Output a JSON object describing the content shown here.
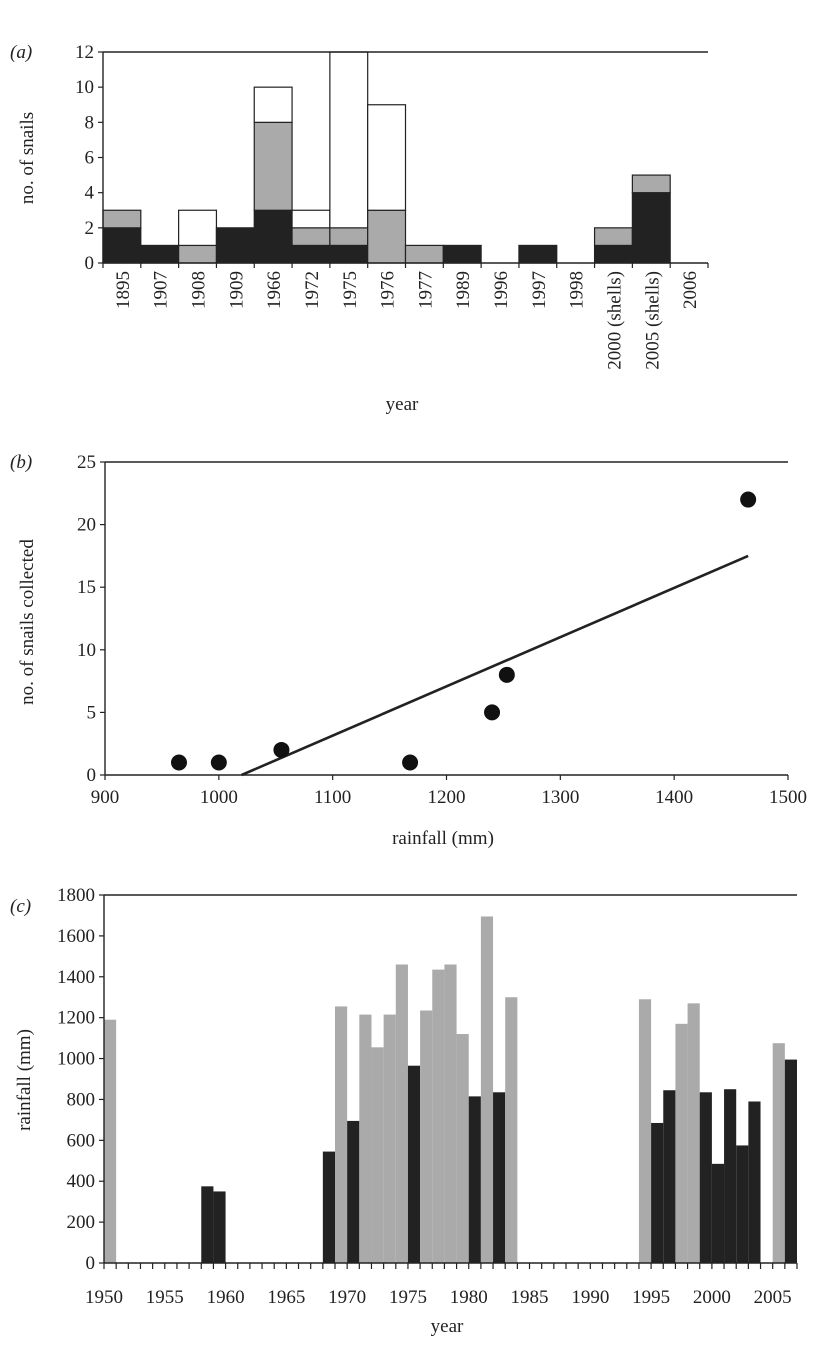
{
  "colors": {
    "black": "#222222",
    "grey": "#aaaaaa",
    "white": "#ffffff"
  },
  "chart_data": [
    {
      "panel": "(a)",
      "type": "bar",
      "stacked": true,
      "categories": [
        "1895",
        "1907",
        "1908",
        "1909",
        "1966",
        "1972",
        "1975",
        "1976",
        "1977",
        "1989",
        "1996",
        "1997",
        "1998",
        "2000 (shells)",
        "2005 (shells)",
        "2006"
      ],
      "series": [
        {
          "color": "black",
          "values": [
            2,
            1,
            0,
            2,
            3,
            1,
            1,
            0,
            0,
            1,
            0,
            1,
            0,
            1,
            4,
            0
          ]
        },
        {
          "color": "grey",
          "values": [
            1,
            0,
            1,
            0,
            5,
            1,
            1,
            3,
            1,
            0,
            0,
            0,
            0,
            1,
            1,
            0
          ]
        },
        {
          "color": "white",
          "values": [
            0,
            0,
            2,
            0,
            2,
            1,
            10,
            6,
            0,
            0,
            0,
            0,
            0,
            0,
            0,
            0
          ]
        }
      ],
      "xlabel": "year",
      "ylabel": "no. of snails",
      "ylim": [
        0,
        12
      ],
      "yticks": [
        0,
        2,
        4,
        6,
        8,
        10,
        12
      ]
    },
    {
      "panel": "(b)",
      "type": "scatter",
      "points": [
        {
          "x": 965,
          "y": 1
        },
        {
          "x": 1000,
          "y": 1
        },
        {
          "x": 1055,
          "y": 2
        },
        {
          "x": 1168,
          "y": 1
        },
        {
          "x": 1240,
          "y": 5
        },
        {
          "x": 1253,
          "y": 8
        },
        {
          "x": 1465,
          "y": 22
        }
      ],
      "fit_line": {
        "x": [
          1020,
          1465
        ],
        "y": [
          0,
          17.5
        ]
      },
      "xlabel": "rainfall (mm)",
      "ylabel": "no. of snails collected",
      "xlim": [
        900,
        1500
      ],
      "ylim": [
        0,
        25
      ],
      "xticks": [
        900,
        1000,
        1100,
        1200,
        1300,
        1400,
        1500
      ],
      "yticks": [
        0,
        5,
        10,
        15,
        20,
        25
      ]
    },
    {
      "panel": "(c)",
      "type": "bar",
      "bars": [
        {
          "year": 1950,
          "value": 1190,
          "color": "grey"
        },
        {
          "year": 1958,
          "value": 375,
          "color": "black"
        },
        {
          "year": 1959,
          "value": 350,
          "color": "black"
        },
        {
          "year": 1968,
          "value": 545,
          "color": "black"
        },
        {
          "year": 1969,
          "value": 1255,
          "color": "grey"
        },
        {
          "year": 1970,
          "value": 695,
          "color": "black"
        },
        {
          "year": 1971,
          "value": 1215,
          "color": "grey"
        },
        {
          "year": 1972,
          "value": 1055,
          "color": "grey"
        },
        {
          "year": 1973,
          "value": 1215,
          "color": "grey"
        },
        {
          "year": 1974,
          "value": 1460,
          "color": "grey"
        },
        {
          "year": 1975,
          "value": 965,
          "color": "black"
        },
        {
          "year": 1976,
          "value": 1235,
          "color": "grey"
        },
        {
          "year": 1977,
          "value": 1435,
          "color": "grey"
        },
        {
          "year": 1978,
          "value": 1460,
          "color": "grey"
        },
        {
          "year": 1979,
          "value": 1120,
          "color": "grey"
        },
        {
          "year": 1980,
          "value": 815,
          "color": "black"
        },
        {
          "year": 1981,
          "value": 1695,
          "color": "grey"
        },
        {
          "year": 1982,
          "value": 835,
          "color": "black"
        },
        {
          "year": 1983,
          "value": 1300,
          "color": "grey"
        },
        {
          "year": 1994,
          "value": 1290,
          "color": "grey"
        },
        {
          "year": 1995,
          "value": 685,
          "color": "black"
        },
        {
          "year": 1996,
          "value": 845,
          "color": "black"
        },
        {
          "year": 1997,
          "value": 1170,
          "color": "grey"
        },
        {
          "year": 1998,
          "value": 1270,
          "color": "grey"
        },
        {
          "year": 1999,
          "value": 835,
          "color": "black"
        },
        {
          "year": 2000,
          "value": 485,
          "color": "black"
        },
        {
          "year": 2001,
          "value": 850,
          "color": "black"
        },
        {
          "year": 2002,
          "value": 575,
          "color": "black"
        },
        {
          "year": 2003,
          "value": 790,
          "color": "black"
        },
        {
          "year": 2005,
          "value": 1075,
          "color": "grey"
        },
        {
          "year": 2006,
          "value": 995,
          "color": "black"
        }
      ],
      "xlabel": "year",
      "ylabel": "rainfall (mm)",
      "xlim": [
        1950,
        2007
      ],
      "ylim": [
        0,
        1800
      ],
      "xticks": [
        1950,
        1955,
        1960,
        1965,
        1970,
        1975,
        1980,
        1985,
        1990,
        1995,
        2000,
        2005
      ],
      "yticks": [
        0,
        200,
        400,
        600,
        800,
        1000,
        1200,
        1400,
        1600,
        1800
      ]
    }
  ]
}
